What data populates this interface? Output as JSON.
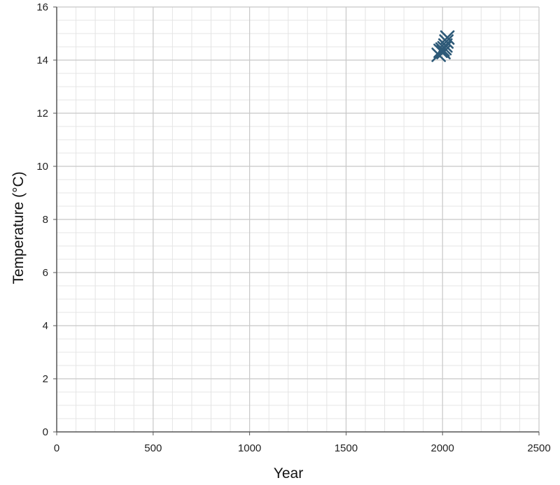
{
  "chart_data": {
    "type": "scatter",
    "xlabel": "Year",
    "ylabel": "Temperature (°C)",
    "xlim": [
      0,
      2500
    ],
    "ylim": [
      0,
      16
    ],
    "x_ticks": [
      "0",
      "500",
      "1000",
      "1500",
      "2000",
      "2500"
    ],
    "y_ticks": [
      "0",
      "2",
      "4",
      "6",
      "8",
      "10",
      "12",
      "14",
      "16"
    ],
    "grid": true,
    "minor_grid": true,
    "marker": "x",
    "series": [
      {
        "x": [
          1980,
          1990,
          2000,
          2005,
          2010,
          2015,
          2020,
          2025
        ],
        "y": [
          14.2,
          14.35,
          14.4,
          14.3,
          14.45,
          14.55,
          14.7,
          14.85
        ],
        "color": "#2e5a78"
      }
    ]
  }
}
